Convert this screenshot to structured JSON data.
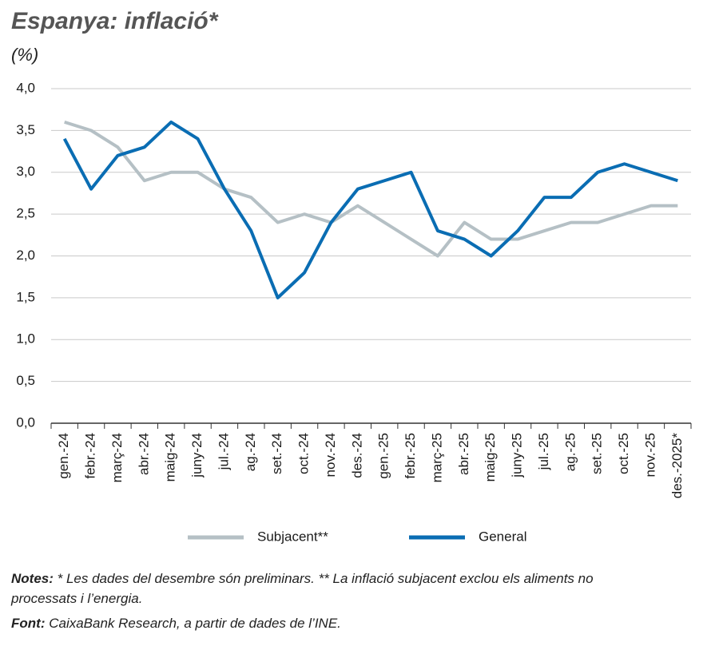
{
  "chart_data": {
    "type": "line",
    "title": "Espanya: inflació*",
    "subtitle": "(%)",
    "categories": [
      "gen.-24",
      "febr.-24",
      "març-24",
      "abr.-24",
      "maig-24",
      "juny-24",
      "jul.-24",
      "ag.-24",
      "set.-24",
      "oct.-24",
      "nov.-24",
      "des.-24",
      "gen.-25",
      "febr.-25",
      "març-25",
      "abr.-25",
      "maig-25",
      "juny-25",
      "jul.-25",
      "ag.-25",
      "set.-25",
      "oct.-25",
      "nov.-25",
      "des.-2025*"
    ],
    "series": [
      {
        "name": "Subjacent**",
        "color": "#b5c0c5",
        "values": [
          3.6,
          3.5,
          3.3,
          2.9,
          3.0,
          3.0,
          2.8,
          2.7,
          2.4,
          2.5,
          2.4,
          2.6,
          2.4,
          2.2,
          2.0,
          2.4,
          2.2,
          2.2,
          2.3,
          2.4,
          2.4,
          2.5,
          2.6,
          2.6
        ]
      },
      {
        "name": "General",
        "color": "#0a6db3",
        "values": [
          3.4,
          2.8,
          3.2,
          3.3,
          3.6,
          3.4,
          2.8,
          2.3,
          1.5,
          1.8,
          2.4,
          2.8,
          2.9,
          3.0,
          2.3,
          2.2,
          2.0,
          2.3,
          2.7,
          2.7,
          3.0,
          3.1,
          3.0,
          2.9
        ]
      }
    ],
    "ylim": [
      0,
      4
    ],
    "yticks": [
      {
        "value": 0,
        "label": "0,0"
      },
      {
        "value": 0.5,
        "label": "0,5"
      },
      {
        "value": 1,
        "label": "1,0"
      },
      {
        "value": 1.5,
        "label": "1,5"
      },
      {
        "value": 2,
        "label": "2,0"
      },
      {
        "value": 2.5,
        "label": "2,5"
      },
      {
        "value": 3,
        "label": "3,0"
      },
      {
        "value": 3.5,
        "label": "3,5"
      },
      {
        "value": 4,
        "label": "4,0"
      }
    ],
    "grid": true,
    "notes": {
      "label": "Notes:",
      "text": " * Les dades del desembre són preliminars. ** La inflació subjacent exclou els aliments no processats i l’energia."
    },
    "source": {
      "label": "Font:",
      "text": " CaixaBank Research, a partir de dades de l’INE."
    }
  }
}
